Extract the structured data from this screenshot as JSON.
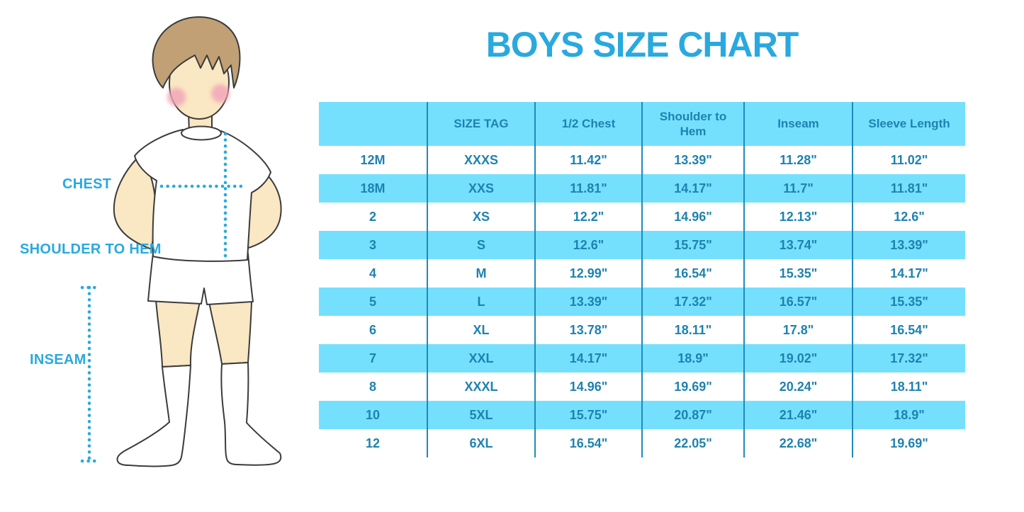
{
  "title": "BOYS SIZE CHART",
  "illustration": {
    "labels": {
      "chest": "CHEST",
      "shoulder_to_hem": "SHOULDER TO HEM",
      "inseam": "INSEAM"
    }
  },
  "colors": {
    "accent_blue": "#29A9DF",
    "table_text": "#1E82B0",
    "row_cyan": "#75E0FD",
    "divider": "#2089BB",
    "skin": "#FAE7C3",
    "hair": "#C1A076",
    "cheek": "#F2A3B8",
    "outline": "#3B3B3B"
  },
  "chart_data": {
    "type": "table",
    "title": "BOYS SIZE CHART",
    "columns": [
      "",
      "SIZE TAG",
      "1/2 Chest",
      "Shoulder to Hem",
      "Inseam",
      "Sleeve Length"
    ],
    "rows": [
      [
        "12M",
        "XXXS",
        "11.42\"",
        "13.39\"",
        "11.28\"",
        "11.02\""
      ],
      [
        "18M",
        "XXS",
        "11.81\"",
        "14.17\"",
        "11.7\"",
        "11.81\""
      ],
      [
        "2",
        "XS",
        "12.2\"",
        "14.96\"",
        "12.13\"",
        "12.6\""
      ],
      [
        "3",
        "S",
        "12.6\"",
        "15.75\"",
        "13.74\"",
        "13.39\""
      ],
      [
        "4",
        "M",
        "12.99\"",
        "16.54\"",
        "15.35\"",
        "14.17\""
      ],
      [
        "5",
        "L",
        "13.39\"",
        "17.32\"",
        "16.57\"",
        "15.35\""
      ],
      [
        "6",
        "XL",
        "13.78\"",
        "18.11\"",
        "17.8\"",
        "16.54\""
      ],
      [
        "7",
        "XXL",
        "14.17\"",
        "18.9\"",
        "19.02\"",
        "17.32\""
      ],
      [
        "8",
        "XXXL",
        "14.96\"",
        "19.69\"",
        "20.24\"",
        "18.11\""
      ],
      [
        "10",
        "5XL",
        "15.75\"",
        "20.87\"",
        "21.46\"",
        "18.9\""
      ],
      [
        "12",
        "6XL",
        "16.54\"",
        "22.05\"",
        "22.68\"",
        "19.69\""
      ]
    ]
  }
}
